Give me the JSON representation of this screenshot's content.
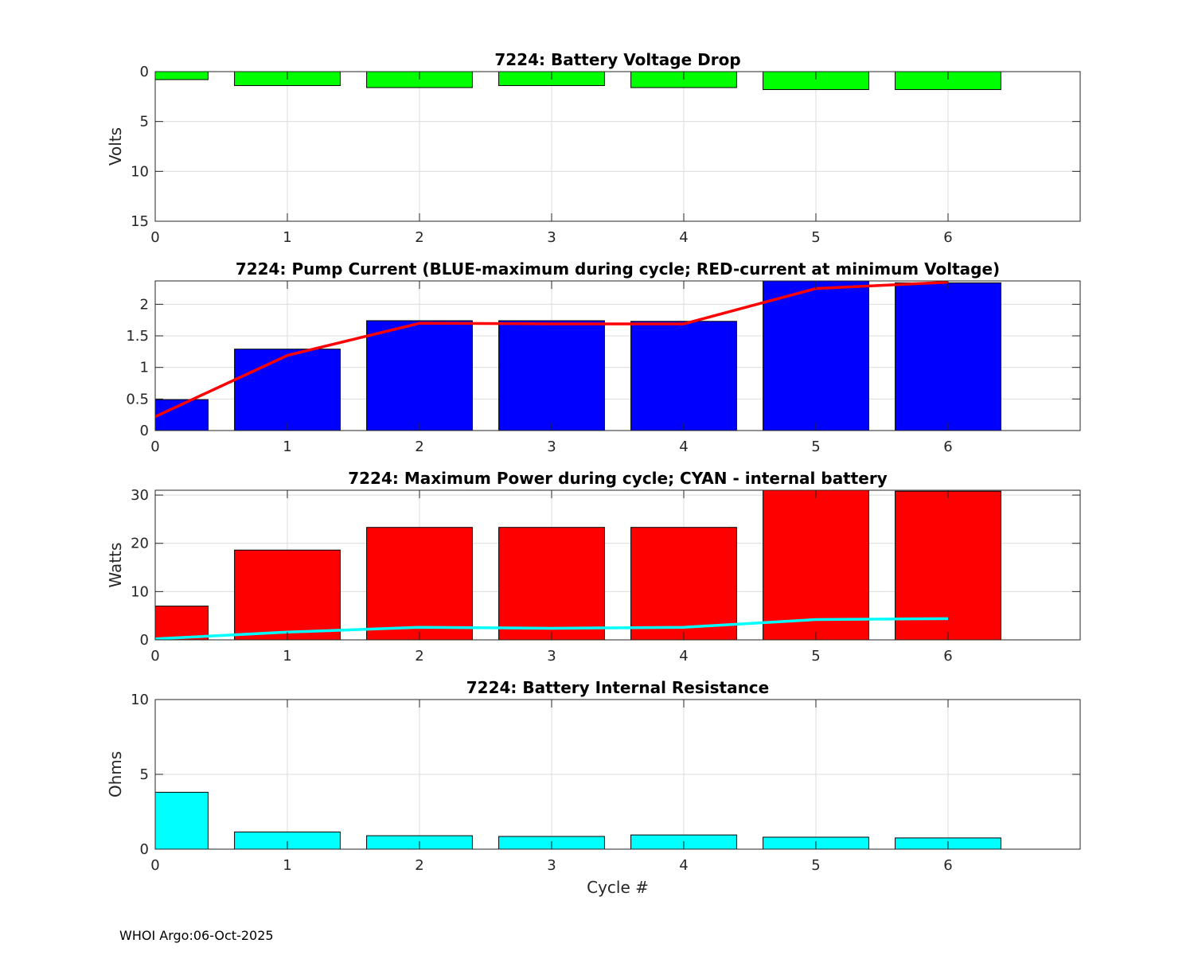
{
  "footer": "WHOI Argo:06-Oct-2025",
  "colors": {
    "green": "#00ff00",
    "blue": "#0000ff",
    "red": "#ff0000",
    "cyan": "#00ffff",
    "grid": "#dcdcdc",
    "axis": "#262626"
  },
  "chart_data": [
    {
      "type": "bar",
      "title": "7224: Battery Voltage Drop",
      "ylabel": "Volts",
      "xlabel": "",
      "x": [
        0,
        1,
        2,
        3,
        4,
        5,
        6
      ],
      "xlim": [
        0,
        7
      ],
      "ylim": [
        0,
        15
      ],
      "y_reversed": true,
      "xticks": [
        0,
        1,
        2,
        3,
        4,
        5,
        6
      ],
      "yticks": [
        0,
        5,
        10,
        15
      ],
      "ytick_labels": [
        "0",
        "5",
        "10",
        "15"
      ],
      "grid": true,
      "series": [
        {
          "name": "Voltage drop",
          "color": "#00ff00",
          "values": [
            0.8,
            1.4,
            1.6,
            1.4,
            1.6,
            1.8,
            1.8
          ]
        }
      ],
      "lines": []
    },
    {
      "type": "bar",
      "title": "7224: Pump Current (BLUE-maximum during cycle; RED-current at minimum Voltage)",
      "ylabel": "",
      "xlabel": "",
      "x": [
        0,
        1,
        2,
        3,
        4,
        5,
        6
      ],
      "xlim": [
        0,
        7
      ],
      "ylim": [
        0,
        2.37
      ],
      "y_reversed": false,
      "xticks": [
        0,
        1,
        2,
        3,
        4,
        5,
        6
      ],
      "yticks": [
        0,
        0.5,
        1,
        1.5,
        2
      ],
      "ytick_labels": [
        "0",
        "0.5",
        "1",
        "1.5",
        "2"
      ],
      "grid": true,
      "series": [
        {
          "name": "BLUE-maximum during cycle",
          "color": "#0000ff",
          "values": [
            0.49,
            1.29,
            1.74,
            1.74,
            1.73,
            2.37,
            2.34
          ]
        }
      ],
      "lines": [
        {
          "name": "RED-current at minimum Voltage",
          "color": "#ff0000",
          "x": [
            0,
            1,
            2,
            3,
            4,
            5,
            6
          ],
          "values": [
            0.22,
            1.19,
            1.7,
            1.69,
            1.69,
            2.25,
            2.35
          ]
        }
      ]
    },
    {
      "type": "bar",
      "title": "7224: Maximum Power during cycle; CYAN - internal battery",
      "ylabel": "Watts",
      "xlabel": "",
      "x": [
        0,
        1,
        2,
        3,
        4,
        5,
        6
      ],
      "xlim": [
        0,
        7
      ],
      "ylim": [
        0,
        31
      ],
      "y_reversed": false,
      "xticks": [
        0,
        1,
        2,
        3,
        4,
        5,
        6
      ],
      "yticks": [
        0,
        10,
        20,
        30
      ],
      "ytick_labels": [
        "0",
        "10",
        "20",
        "30"
      ],
      "grid": true,
      "series": [
        {
          "name": "Maximum power",
          "color": "#ff0000",
          "values": [
            7.0,
            18.6,
            23.3,
            23.3,
            23.3,
            31.0,
            30.8
          ]
        }
      ],
      "lines": [
        {
          "name": "CYAN - internal battery",
          "color": "#00ffff",
          "x": [
            0,
            1,
            2,
            3,
            4,
            5,
            6
          ],
          "values": [
            0.2,
            1.6,
            2.6,
            2.4,
            2.6,
            4.2,
            4.4
          ]
        }
      ]
    },
    {
      "type": "bar",
      "title": "7224: Battery Internal Resistance",
      "ylabel": "Ohms",
      "xlabel": "Cycle #",
      "x": [
        0,
        1,
        2,
        3,
        4,
        5,
        6
      ],
      "xlim": [
        0,
        7
      ],
      "ylim": [
        0,
        10
      ],
      "y_reversed": false,
      "xticks": [
        0,
        1,
        2,
        3,
        4,
        5,
        6
      ],
      "yticks": [
        0,
        5,
        10
      ],
      "ytick_labels": [
        "0",
        "5",
        "10"
      ],
      "grid": true,
      "series": [
        {
          "name": "Internal resistance",
          "color": "#00ffff",
          "values": [
            3.8,
            1.15,
            0.9,
            0.85,
            0.95,
            0.8,
            0.75
          ]
        }
      ],
      "lines": []
    }
  ]
}
